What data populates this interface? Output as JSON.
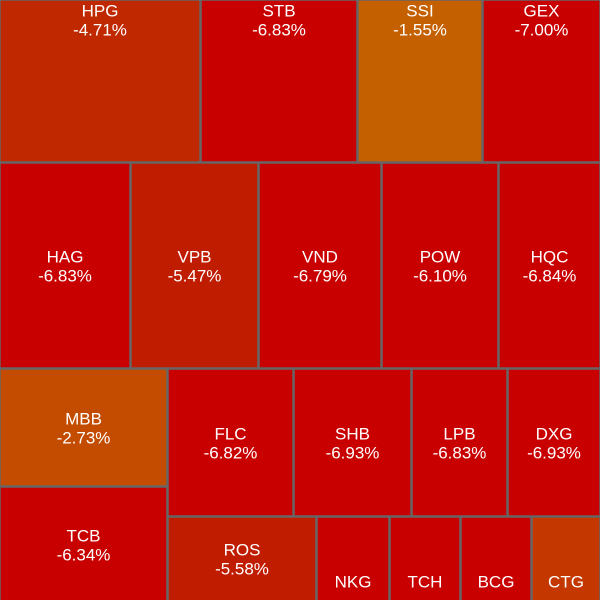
{
  "chart_data": {
    "type": "treemap",
    "categories": [
      "HPG",
      "STB",
      "SSI",
      "GEX",
      "HAG",
      "VPB",
      "VND",
      "POW",
      "HQC",
      "MBB",
      "TCB",
      "FLC",
      "SHB",
      "LPB",
      "DXG",
      "ROS",
      "NKG",
      "TCH",
      "BCG",
      "CTG"
    ],
    "values": [
      -4.71,
      -6.83,
      -1.55,
      -7.0,
      -6.83,
      -5.47,
      -6.79,
      -6.1,
      -6.84,
      -2.73,
      -6.34,
      -6.82,
      -6.93,
      -6.83,
      -6.93,
      -5.58,
      null,
      null,
      null,
      null
    ],
    "value_labels": [
      "-4.71%",
      "-6.83%",
      "-1.55%",
      "-7.00%",
      "-6.83%",
      "-5.47%",
      "-6.79%",
      "-6.10%",
      "-6.84%",
      "-2.73%",
      "-6.34%",
      "-6.82%",
      "-6.93%",
      "-6.83%",
      "-6.93%",
      "-5.58%",
      null,
      null,
      null,
      null
    ],
    "colors": [
      "#c02800",
      "#c80000",
      "#c46000",
      "#c80000",
      "#c80000",
      "#c01c00",
      "#c80000",
      "#c80000",
      "#c80000",
      "#c44c00",
      "#c80000",
      "#c80000",
      "#c80000",
      "#c80000",
      "#c80000",
      "#c01c00",
      "#c80000",
      "#c80000",
      "#c80000",
      "#c43800"
    ]
  }
}
